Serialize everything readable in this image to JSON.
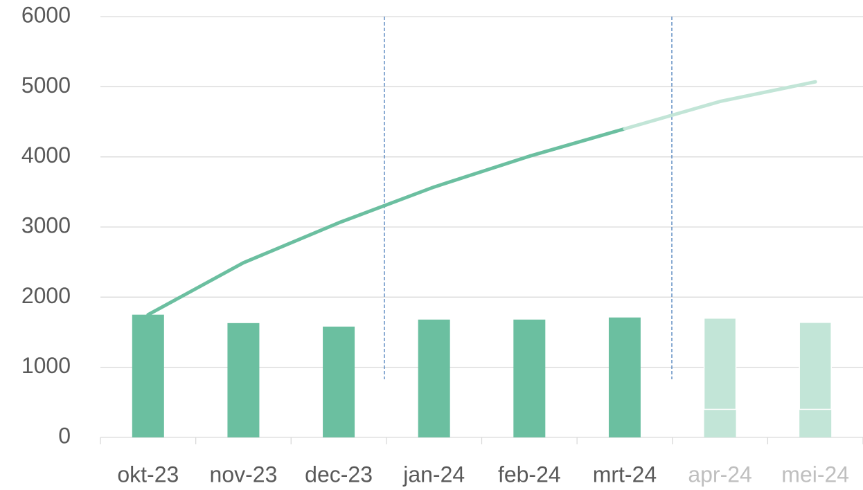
{
  "chart_data": {
    "type": "bar",
    "categories": [
      "okt-23",
      "nov-23",
      "dec-23",
      "jan-24",
      "feb-24",
      "mrt-24",
      "apr-24",
      "mei-24"
    ],
    "category_colors": [
      "#595959",
      "#595959",
      "#595959",
      "#595959",
      "#595959",
      "#595959",
      "#bfbfbf",
      "#bfbfbf"
    ],
    "series": [
      {
        "type": "bar",
        "color": "#6bbfa0",
        "values": [
          1750,
          1630,
          1580,
          1680,
          1680,
          1710,
          null,
          null
        ]
      },
      {
        "type": "bar",
        "color": "#c2e5d7",
        "values": [
          null,
          null,
          null,
          null,
          null,
          null,
          400,
          400
        ]
      },
      {
        "type": "bar",
        "color": "#c2e5d7",
        "values": [
          null,
          null,
          null,
          null,
          null,
          null,
          1300,
          1240
        ]
      },
      {
        "type": "line",
        "color": "#6bbfa0",
        "values": [
          1750,
          2490,
          3060,
          3570,
          4010,
          4400,
          null,
          null
        ]
      },
      {
        "type": "line",
        "color": "#c2e5d7",
        "values": [
          null,
          null,
          null,
          null,
          null,
          4400,
          4790,
          5070
        ]
      }
    ],
    "ylim": [
      0,
      6000
    ],
    "yticks": [
      0,
      1000,
      2000,
      3000,
      4000,
      5000,
      6000
    ],
    "grid": true
  }
}
